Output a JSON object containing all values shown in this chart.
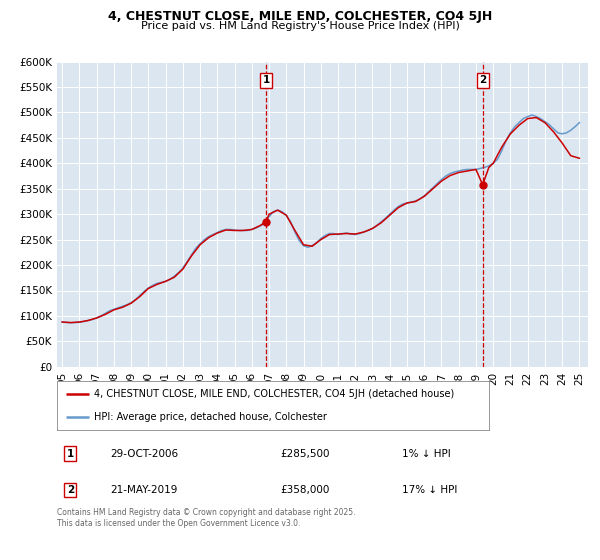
{
  "title": "4, CHESTNUT CLOSE, MILE END, COLCHESTER, CO4 5JH",
  "subtitle": "Price paid vs. HM Land Registry's House Price Index (HPI)",
  "background_color": "#ffffff",
  "plot_bg_color": "#dce6f0",
  "grid_color": "#ffffff",
  "ylim": [
    0,
    600000
  ],
  "yticks": [
    0,
    50000,
    100000,
    150000,
    200000,
    250000,
    300000,
    350000,
    400000,
    450000,
    500000,
    550000,
    600000
  ],
  "ytick_labels": [
    "£0",
    "£50K",
    "£100K",
    "£150K",
    "£200K",
    "£250K",
    "£300K",
    "£350K",
    "£400K",
    "£450K",
    "£500K",
    "£550K",
    "£600K"
  ],
  "xlim_start": 1994.7,
  "xlim_end": 2025.5,
  "xticks": [
    1995,
    1996,
    1997,
    1998,
    1999,
    2000,
    2001,
    2002,
    2003,
    2004,
    2005,
    2006,
    2007,
    2008,
    2009,
    2010,
    2011,
    2012,
    2013,
    2014,
    2015,
    2016,
    2017,
    2018,
    2019,
    2020,
    2021,
    2022,
    2023,
    2024,
    2025
  ],
  "xtick_labels": [
    "95",
    "96",
    "97",
    "98",
    "99",
    "00",
    "01",
    "02",
    "03",
    "04",
    "05",
    "06",
    "07",
    "08",
    "09",
    "10",
    "11",
    "12",
    "13",
    "14",
    "15",
    "16",
    "17",
    "18",
    "19",
    "20",
    "21",
    "22",
    "23",
    "24",
    "25"
  ],
  "marker1_x": 2006.83,
  "marker1_y": 285500,
  "marker1_label": "1",
  "marker1_date": "29-OCT-2006",
  "marker1_price": "£285,500",
  "marker1_hpi": "1% ↓ HPI",
  "marker2_x": 2019.39,
  "marker2_y": 358000,
  "marker2_label": "2",
  "marker2_date": "21-MAY-2019",
  "marker2_price": "£358,000",
  "marker2_hpi": "17% ↓ HPI",
  "line1_color": "#cc0000",
  "line2_color": "#6699cc",
  "line1_label": "4, CHESTNUT CLOSE, MILE END, COLCHESTER, CO4 5JH (detached house)",
  "line2_label": "HPI: Average price, detached house, Colchester",
  "footer": "Contains HM Land Registry data © Crown copyright and database right 2025.\nThis data is licensed under the Open Government Licence v3.0.",
  "hpi_data_x": [
    1995.0,
    1995.25,
    1995.5,
    1995.75,
    1996.0,
    1996.25,
    1996.5,
    1996.75,
    1997.0,
    1997.25,
    1997.5,
    1997.75,
    1998.0,
    1998.25,
    1998.5,
    1998.75,
    1999.0,
    1999.25,
    1999.5,
    1999.75,
    2000.0,
    2000.25,
    2000.5,
    2000.75,
    2001.0,
    2001.25,
    2001.5,
    2001.75,
    2002.0,
    2002.25,
    2002.5,
    2002.75,
    2003.0,
    2003.25,
    2003.5,
    2003.75,
    2004.0,
    2004.25,
    2004.5,
    2004.75,
    2005.0,
    2005.25,
    2005.5,
    2005.75,
    2006.0,
    2006.25,
    2006.5,
    2006.75,
    2007.0,
    2007.25,
    2007.5,
    2007.75,
    2008.0,
    2008.25,
    2008.5,
    2008.75,
    2009.0,
    2009.25,
    2009.5,
    2009.75,
    2010.0,
    2010.25,
    2010.5,
    2010.75,
    2011.0,
    2011.25,
    2011.5,
    2011.75,
    2012.0,
    2012.25,
    2012.5,
    2012.75,
    2013.0,
    2013.25,
    2013.5,
    2013.75,
    2014.0,
    2014.25,
    2014.5,
    2014.75,
    2015.0,
    2015.25,
    2015.5,
    2015.75,
    2016.0,
    2016.25,
    2016.5,
    2016.75,
    2017.0,
    2017.25,
    2017.5,
    2017.75,
    2018.0,
    2018.25,
    2018.5,
    2018.75,
    2019.0,
    2019.25,
    2019.5,
    2019.75,
    2020.0,
    2020.25,
    2020.5,
    2020.75,
    2021.0,
    2021.25,
    2021.5,
    2021.75,
    2022.0,
    2022.25,
    2022.5,
    2022.75,
    2023.0,
    2023.25,
    2023.5,
    2023.75,
    2024.0,
    2024.25,
    2024.5,
    2024.75,
    2025.0
  ],
  "hpi_data_y": [
    88000,
    87000,
    86500,
    87000,
    87500,
    89000,
    91000,
    93000,
    96000,
    100000,
    105000,
    110000,
    113000,
    116000,
    119000,
    122000,
    126000,
    132000,
    140000,
    148000,
    155000,
    160000,
    164000,
    166000,
    168000,
    172000,
    178000,
    185000,
    194000,
    207000,
    220000,
    233000,
    242000,
    250000,
    256000,
    260000,
    264000,
    268000,
    270000,
    270000,
    269000,
    268000,
    268000,
    268000,
    270000,
    273000,
    277000,
    282000,
    295000,
    305000,
    308000,
    305000,
    298000,
    285000,
    265000,
    248000,
    238000,
    235000,
    238000,
    244000,
    252000,
    258000,
    262000,
    262000,
    260000,
    262000,
    263000,
    261000,
    260000,
    262000,
    265000,
    268000,
    272000,
    278000,
    285000,
    292000,
    300000,
    308000,
    315000,
    320000,
    322000,
    324000,
    326000,
    330000,
    336000,
    344000,
    352000,
    360000,
    368000,
    375000,
    380000,
    383000,
    385000,
    387000,
    388000,
    388000,
    388000,
    390000,
    392000,
    395000,
    400000,
    408000,
    425000,
    445000,
    460000,
    472000,
    480000,
    488000,
    492000,
    495000,
    492000,
    488000,
    482000,
    476000,
    468000,
    460000,
    458000,
    460000,
    465000,
    472000,
    480000
  ],
  "house_data_x": [
    1995.0,
    1995.5,
    1996.0,
    1996.5,
    1997.0,
    1997.5,
    1998.0,
    1998.5,
    1999.0,
    1999.5,
    2000.0,
    2000.5,
    2001.0,
    2001.5,
    2002.0,
    2002.5,
    2003.0,
    2003.5,
    2004.0,
    2004.5,
    2005.0,
    2005.5,
    2006.0,
    2006.5,
    2006.83,
    2007.0,
    2007.5,
    2008.0,
    2008.5,
    2009.0,
    2009.5,
    2010.0,
    2010.5,
    2011.0,
    2011.5,
    2012.0,
    2012.5,
    2013.0,
    2013.5,
    2014.0,
    2014.5,
    2015.0,
    2015.5,
    2016.0,
    2016.5,
    2017.0,
    2017.5,
    2018.0,
    2018.5,
    2019.0,
    2019.39,
    2019.75,
    2020.0,
    2020.5,
    2021.0,
    2021.5,
    2022.0,
    2022.5,
    2023.0,
    2023.5,
    2024.0,
    2024.5,
    2025.0
  ],
  "house_data_y": [
    88000,
    87000,
    88000,
    91000,
    96000,
    103000,
    112000,
    117000,
    125000,
    138000,
    154000,
    162000,
    168000,
    176000,
    192000,
    218000,
    240000,
    254000,
    263000,
    269000,
    268000,
    268000,
    270000,
    278000,
    285500,
    300000,
    308000,
    298000,
    268000,
    240000,
    237000,
    250000,
    260000,
    261000,
    262000,
    261000,
    265000,
    272000,
    283000,
    298000,
    313000,
    322000,
    325000,
    335000,
    350000,
    365000,
    376000,
    382000,
    385000,
    388000,
    358000,
    392000,
    400000,
    432000,
    458000,
    475000,
    488000,
    490000,
    480000,
    462000,
    440000,
    415000,
    410000
  ]
}
